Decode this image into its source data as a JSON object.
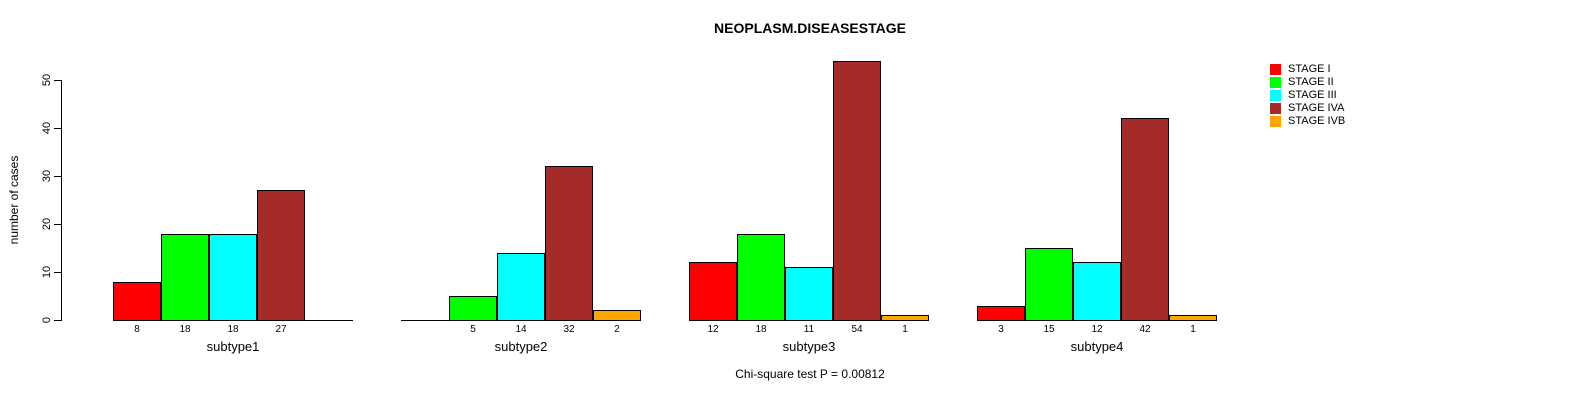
{
  "title": "NEOPLASM.DISEASESTAGE",
  "annotation": "Chi-square test P = 0.00812",
  "y_axis": {
    "label": "number of cases"
  },
  "legend": {
    "items": [
      {
        "label": "STAGE I",
        "color": "#FF0000"
      },
      {
        "label": "STAGE II",
        "color": "#00FF00"
      },
      {
        "label": "STAGE III",
        "color": "#00FFFF"
      },
      {
        "label": "STAGE IVA",
        "color": "#A52A2A"
      },
      {
        "label": "STAGE IVB",
        "color": "#FFA500"
      }
    ]
  },
  "chart_data": {
    "type": "bar",
    "title": "NEOPLASM.DISEASESTAGE",
    "categories": [
      "subtype1",
      "subtype2",
      "subtype3",
      "subtype4"
    ],
    "series": [
      {
        "name": "STAGE I",
        "color": "#FF0000",
        "values": [
          8,
          0,
          12,
          3
        ]
      },
      {
        "name": "STAGE II",
        "color": "#00FF00",
        "values": [
          18,
          5,
          18,
          15
        ]
      },
      {
        "name": "STAGE III",
        "color": "#00FFFF",
        "values": [
          18,
          14,
          11,
          12
        ]
      },
      {
        "name": "STAGE IVA",
        "color": "#A52A2A",
        "values": [
          27,
          32,
          54,
          42
        ]
      },
      {
        "name": "STAGE IVB",
        "color": "#FFA500",
        "values": [
          0,
          2,
          1,
          1
        ]
      }
    ],
    "xlabel": "",
    "ylabel": "number of cases",
    "ylim": [
      0,
      50
    ],
    "yticks": [
      0,
      10,
      20,
      30,
      40,
      50
    ],
    "grid": false,
    "legend_position": "top-right-outside",
    "bar_value_labels_shown": true,
    "zero_value_bars_hidden": true,
    "annotation": "Chi-square test P = 0.00812"
  }
}
